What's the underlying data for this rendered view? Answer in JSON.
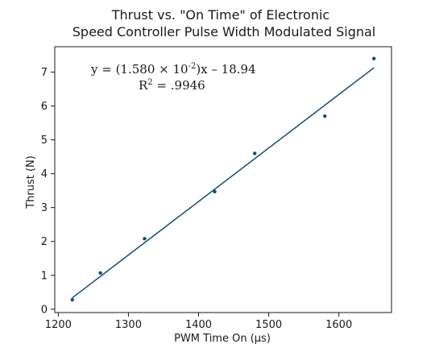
{
  "chart_data": {
    "type": "scatter",
    "title_line1": "Thrust vs. \"On Time\" of Electronic",
    "title_line2": "Speed Controller Pulse Width Modulated Signal",
    "xlabel": "PWM Time On (μs)",
    "ylabel": "Thrust (N)",
    "xlim": [
      1195,
      1675
    ],
    "ylim": [
      -0.1,
      7.75
    ],
    "x_ticks": [
      1200,
      1300,
      1400,
      1500,
      1600
    ],
    "y_ticks": [
      0,
      1,
      2,
      3,
      4,
      5,
      6,
      7
    ],
    "grid": false,
    "points": [
      {
        "x": 1220,
        "y": 0.28
      },
      {
        "x": 1260,
        "y": 1.07
      },
      {
        "x": 1323,
        "y": 2.08
      },
      {
        "x": 1423,
        "y": 3.47
      },
      {
        "x": 1480,
        "y": 4.6
      },
      {
        "x": 1580,
        "y": 5.7
      },
      {
        "x": 1650,
        "y": 7.4
      }
    ],
    "fit_line": {
      "slope": 0.0158,
      "intercept": -18.94,
      "x_start": 1220,
      "x_end": 1650
    },
    "equation": {
      "prefix": "y = (1.580 × 10",
      "exponent": "-2",
      "suffix": ")x – 18.94",
      "r2_label": "R",
      "r2_exponent": "2",
      "r2_value": " = .9946"
    },
    "colors": {
      "series": "#0d5073",
      "axes": "#1a1a1a"
    }
  }
}
